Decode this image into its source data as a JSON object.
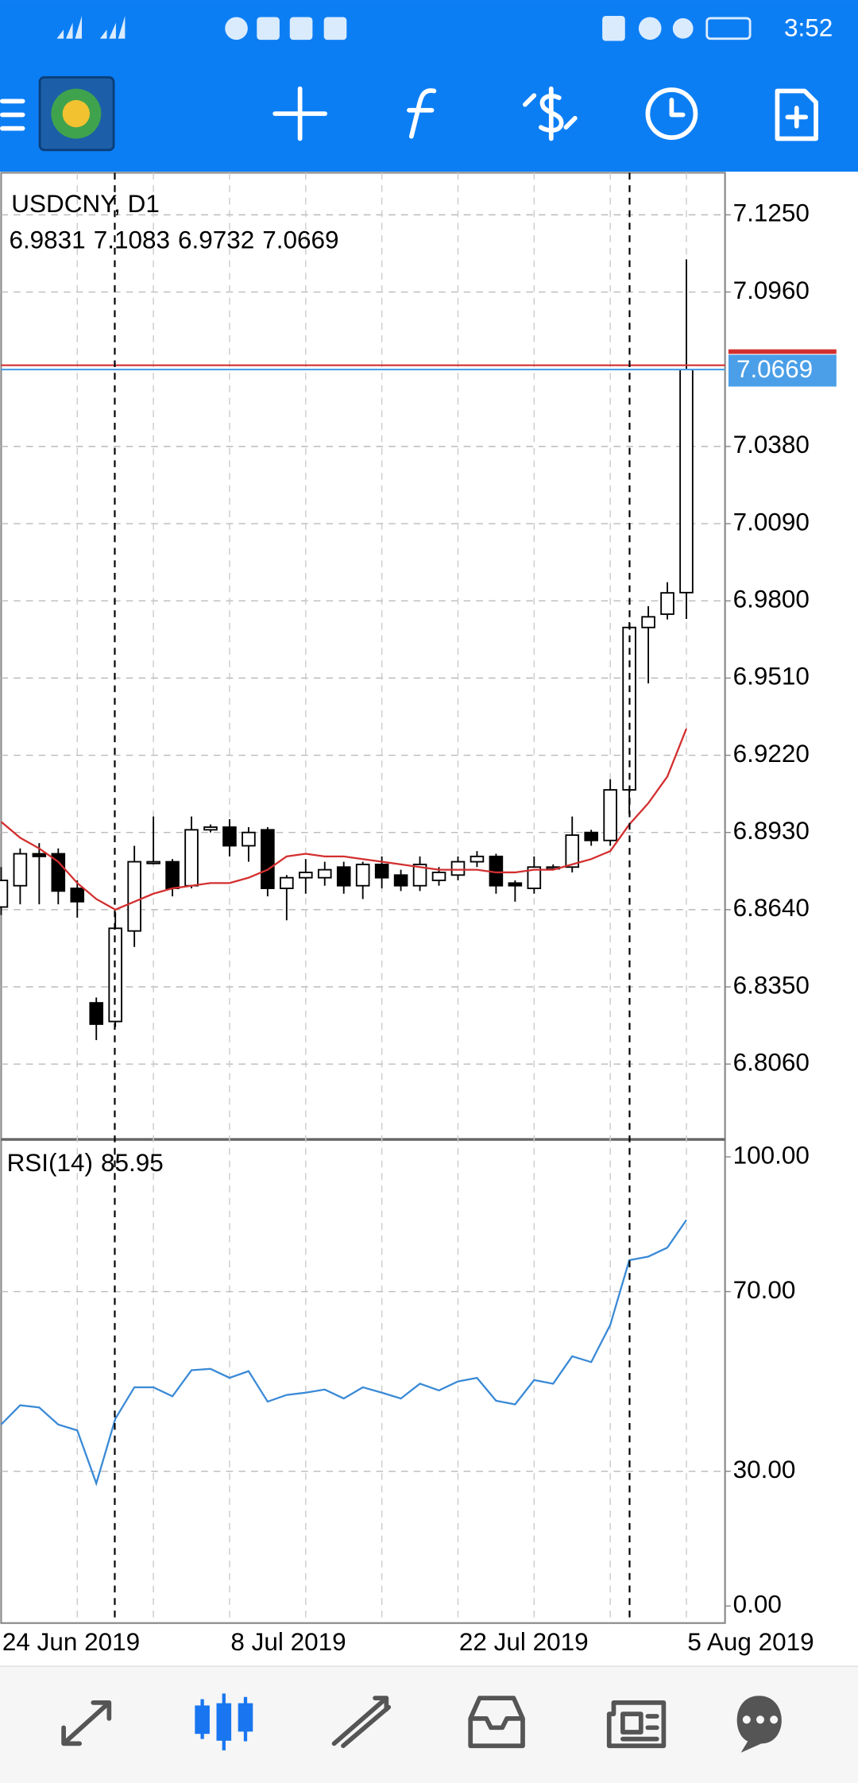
{
  "status_bar": {
    "time": "3:52"
  },
  "chart_data": [
    {
      "type": "candlestick",
      "title": "USDCNY, D1",
      "categories": [
        "24 Jun 2019",
        null,
        null,
        null,
        null,
        null,
        null,
        null,
        null,
        null,
        null,
        null,
        "8 Jul 2019",
        null,
        null,
        null,
        null,
        null,
        null,
        null,
        null,
        null,
        null,
        null,
        "22 Jul 2019",
        null,
        null,
        null,
        null,
        null,
        null,
        null,
        null,
        null,
        null,
        null,
        "5 Aug 2019"
      ],
      "open": [
        6.865,
        6.873,
        6.885,
        6.885,
        6.872,
        6.829,
        6.822,
        6.856,
        6.882,
        6.882,
        6.873,
        6.894,
        6.895,
        6.888,
        6.894,
        6.872,
        6.876,
        6.876,
        6.88,
        6.873,
        6.881,
        6.877,
        6.873,
        6.875,
        6.877,
        6.882,
        6.884,
        6.874,
        6.872,
        6.88,
        6.88,
        6.893,
        6.89,
        6.909,
        6.97,
        6.975,
        6.9831
      ],
      "high": [
        6.88,
        6.887,
        6.889,
        6.887,
        6.875,
        6.831,
        6.863,
        6.888,
        6.899,
        6.883,
        6.899,
        6.896,
        6.898,
        6.895,
        6.895,
        6.877,
        6.883,
        6.882,
        6.882,
        6.882,
        6.884,
        6.879,
        6.884,
        6.88,
        6.884,
        6.886,
        6.885,
        6.875,
        6.884,
        6.881,
        6.899,
        6.894,
        6.913,
        6.972,
        6.978,
        6.987,
        7.1083
      ],
      "low": [
        6.862,
        6.866,
        6.866,
        6.866,
        6.861,
        6.815,
        6.82,
        6.85,
        6.881,
        6.869,
        6.872,
        6.893,
        6.884,
        6.882,
        6.869,
        6.86,
        6.87,
        6.873,
        6.87,
        6.868,
        6.872,
        6.871,
        6.871,
        6.873,
        6.875,
        6.88,
        6.87,
        6.867,
        6.87,
        6.879,
        6.878,
        6.888,
        6.888,
        6.9,
        6.949,
        6.973,
        6.9732
      ],
      "close": [
        6.875,
        6.885,
        6.884,
        6.871,
        6.867,
        6.821,
        6.857,
        6.882,
        6.882,
        6.872,
        6.894,
        6.895,
        6.888,
        6.893,
        6.872,
        6.876,
        6.878,
        6.879,
        6.873,
        6.881,
        6.876,
        6.873,
        6.881,
        6.878,
        6.882,
        6.884,
        6.873,
        6.873,
        6.88,
        6.88,
        6.892,
        6.89,
        6.909,
        6.97,
        6.974,
        6.983,
        7.0669
      ],
      "ma": [
        6.897,
        6.891,
        6.887,
        6.882,
        6.874,
        6.868,
        6.864,
        6.867,
        6.87,
        6.872,
        6.873,
        6.874,
        6.874,
        6.876,
        6.879,
        6.884,
        6.885,
        6.884,
        6.884,
        6.883,
        6.882,
        6.881,
        6.88,
        6.879,
        6.879,
        6.879,
        6.878,
        6.878,
        6.879,
        6.879,
        6.881,
        6.883,
        6.886,
        6.896,
        6.904,
        6.914,
        6.932
      ],
      "ma_color": "#d32f2f",
      "up_color": "#ffffff",
      "down_color": "#000000",
      "ask": 7.0685,
      "ask_color": "#d32f2f",
      "bid_color": "#4a9fe8",
      "ylim": [
        6.7779,
        7.1408
      ],
      "yticks": [
        {
          "value": 7.125,
          "label": "7.1250"
        },
        {
          "value": 7.096,
          "label": "7.0960"
        },
        {
          "value": 7.038,
          "label": "7.0380"
        },
        {
          "value": 7.009,
          "label": "7.0090"
        },
        {
          "value": 6.98,
          "label": "6.9800"
        },
        {
          "value": 6.951,
          "label": "6.9510"
        },
        {
          "value": 6.922,
          "label": "6.9220"
        },
        {
          "value": 6.893,
          "label": "6.8930"
        },
        {
          "value": 6.864,
          "label": "6.8640"
        },
        {
          "value": 6.835,
          "label": "6.8350"
        },
        {
          "value": 6.806,
          "label": "6.8060"
        }
      ],
      "grid": true
    },
    {
      "type": "line",
      "title": "RSI(14)",
      "values": [
        40.4,
        44.7,
        44.2,
        40.4,
        39.1,
        27.3,
        41.7,
        48.7,
        48.7,
        46.7,
        52.5,
        52.8,
        50.8,
        52.3,
        45.5,
        47.0,
        47.5,
        48.2,
        46.2,
        48.7,
        47.5,
        46.2,
        49.5,
        48.0,
        50.0,
        50.8,
        45.7,
        44.9,
        50.3,
        49.5,
        55.6,
        54.3,
        62.6,
        77.0,
        77.8,
        79.8,
        85.95
      ],
      "color": "#3a8ad6",
      "ylim": [
        -3.8,
        103.5
      ],
      "yticks": [
        {
          "value": 100,
          "label": "100.00"
        },
        {
          "value": 70,
          "label": "70.00"
        },
        {
          "value": 30,
          "label": "30.00"
        },
        {
          "value": 0,
          "label": "0.00"
        }
      ],
      "grid": true
    }
  ]
}
